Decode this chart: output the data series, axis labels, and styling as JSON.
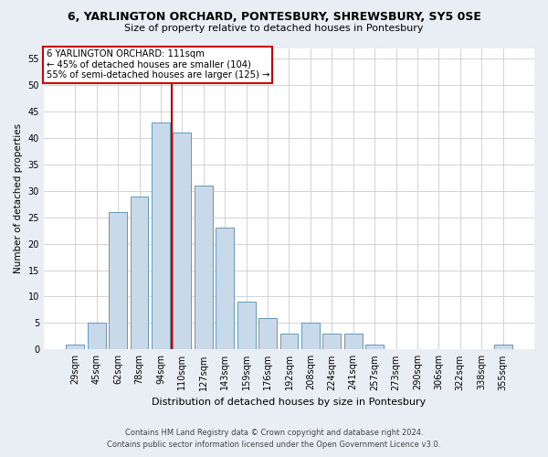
{
  "title1": "6, YARLINGTON ORCHARD, PONTESBURY, SHREWSBURY, SY5 0SE",
  "title2": "Size of property relative to detached houses in Pontesbury",
  "xlabel": "Distribution of detached houses by size in Pontesbury",
  "ylabel": "Number of detached properties",
  "categories": [
    "29sqm",
    "45sqm",
    "62sqm",
    "78sqm",
    "94sqm",
    "110sqm",
    "127sqm",
    "143sqm",
    "159sqm",
    "176sqm",
    "192sqm",
    "208sqm",
    "224sqm",
    "241sqm",
    "257sqm",
    "273sqm",
    "290sqm",
    "306sqm",
    "322sqm",
    "338sqm",
    "355sqm"
  ],
  "values": [
    1,
    5,
    26,
    29,
    43,
    41,
    31,
    23,
    9,
    6,
    3,
    5,
    3,
    3,
    1,
    0,
    0,
    0,
    0,
    0,
    1
  ],
  "bar_color": "#c8d9ea",
  "bar_edge_color": "#6699bb",
  "vline_color": "#cc0000",
  "vline_x_index": 4.5,
  "ylim": [
    0,
    57
  ],
  "yticks": [
    0,
    5,
    10,
    15,
    20,
    25,
    30,
    35,
    40,
    45,
    50,
    55
  ],
  "annotation_line1": "6 YARLINGTON ORCHARD: 111sqm",
  "annotation_line2": "← 45% of detached houses are smaller (104)",
  "annotation_line3": "55% of semi-detached houses are larger (125) →",
  "annotation_box_color": "#ffffff",
  "annotation_box_edge_color": "#cc0000",
  "footer1": "Contains HM Land Registry data © Crown copyright and database right 2024.",
  "footer2": "Contains public sector information licensed under the Open Government Licence v3.0.",
  "background_color": "#e8eef4",
  "plot_background_color": "#ffffff",
  "grid_color": "#cccccc"
}
